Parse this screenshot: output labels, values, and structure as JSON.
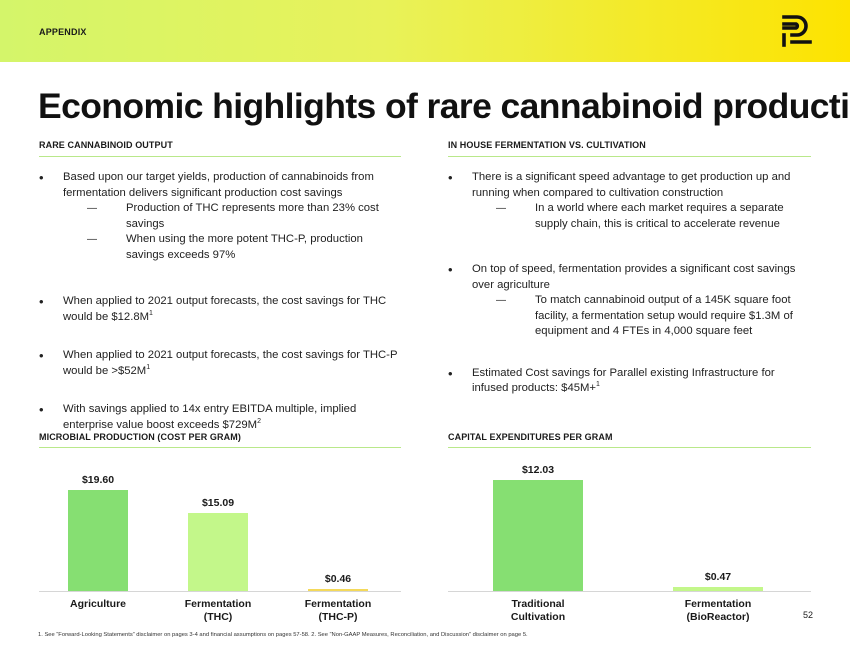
{
  "header": {
    "label": "APPENDIX",
    "logo_icon": "parallel-logo-icon",
    "gradient_colors": [
      "#d4f56a",
      "#fde300"
    ]
  },
  "title": "Economic highlights of rare cannabinoid production",
  "left_section": {
    "heading": "RARE CANNABINOID OUTPUT",
    "bullets": [
      {
        "text": "Based upon our target yields, production of cannabinoids from fermentation delivers significant production cost savings",
        "subs": [
          "Production of THC represents more than 23% cost savings",
          "When using the more potent THC-P, production savings exceeds 97%"
        ]
      },
      {
        "text": "When applied to 2021 output forecasts, the cost savings for THC would be $12.8M",
        "sup": "1"
      },
      {
        "text": "When applied to 2021 output forecasts, the cost savings for THC-P would be >$52M",
        "sup": "1"
      },
      {
        "text": "With savings applied to 14x entry EBITDA multiple, implied enterprise value boost exceeds $729M",
        "sup": "2"
      }
    ]
  },
  "right_section": {
    "heading": "IN HOUSE FERMENTATION VS. CULTIVATION",
    "bullets": [
      {
        "text": "There is a significant speed advantage to get production up and running when compared to cultivation construction",
        "subs": [
          "In a world where each market requires a separate supply chain, this is critical to accelerate revenue"
        ]
      },
      {
        "text": "On top of speed, fermentation provides a significant cost savings over agriculture",
        "subs": [
          "To match cannabinoid output of a 145K square foot facility, a fermentation setup would require $1.3M of equipment and 4 FTEs in 4,000 square feet"
        ]
      },
      {
        "text": "Estimated Cost savings for Parallel existing Infrastructure for infused products: $45M+",
        "sup": "1"
      }
    ]
  },
  "chart_data": [
    {
      "type": "bar",
      "title": "MICROBIAL PRODUCTION (COST PER GRAM)",
      "categories": [
        "Agriculture",
        "Fermentation (THC)",
        "Fermentation (THC-P)"
      ],
      "category_lines": [
        [
          "Agriculture"
        ],
        [
          "Fermentation",
          "(THC)"
        ],
        [
          "Fermentation",
          "(THC-P)"
        ]
      ],
      "values": [
        19.6,
        15.09,
        0.46
      ],
      "labels": [
        "$19.60",
        "$15.09",
        "$0.46"
      ],
      "colors": [
        "#86df72",
        "#c3f78a",
        "#f4d95a"
      ],
      "ylim": [
        0,
        19.6
      ],
      "xlabel": "",
      "ylabel": ""
    },
    {
      "type": "bar",
      "title": "CAPITAL EXPENDITURES PER GRAM",
      "categories": [
        "Traditional Cultivation",
        "Fermentation (BioReactor)"
      ],
      "category_lines": [
        [
          "Traditional",
          "Cultivation"
        ],
        [
          "Fermentation",
          "(BioReactor)"
        ]
      ],
      "values": [
        12.03,
        0.47
      ],
      "labels": [
        "$12.03",
        "$0.47"
      ],
      "colors": [
        "#86df72",
        "#c3f78a"
      ],
      "ylim": [
        0,
        12.03
      ],
      "xlabel": "",
      "ylabel": ""
    }
  ],
  "page_number": "52",
  "footnote": "1. See “Forward-Looking Statements” disclaimer on pages 3-4 and financial assumptions on pages 57-58. 2. See “Non-GAAP Measures, Reconciliation, and Discussion” disclaimer on page 5."
}
